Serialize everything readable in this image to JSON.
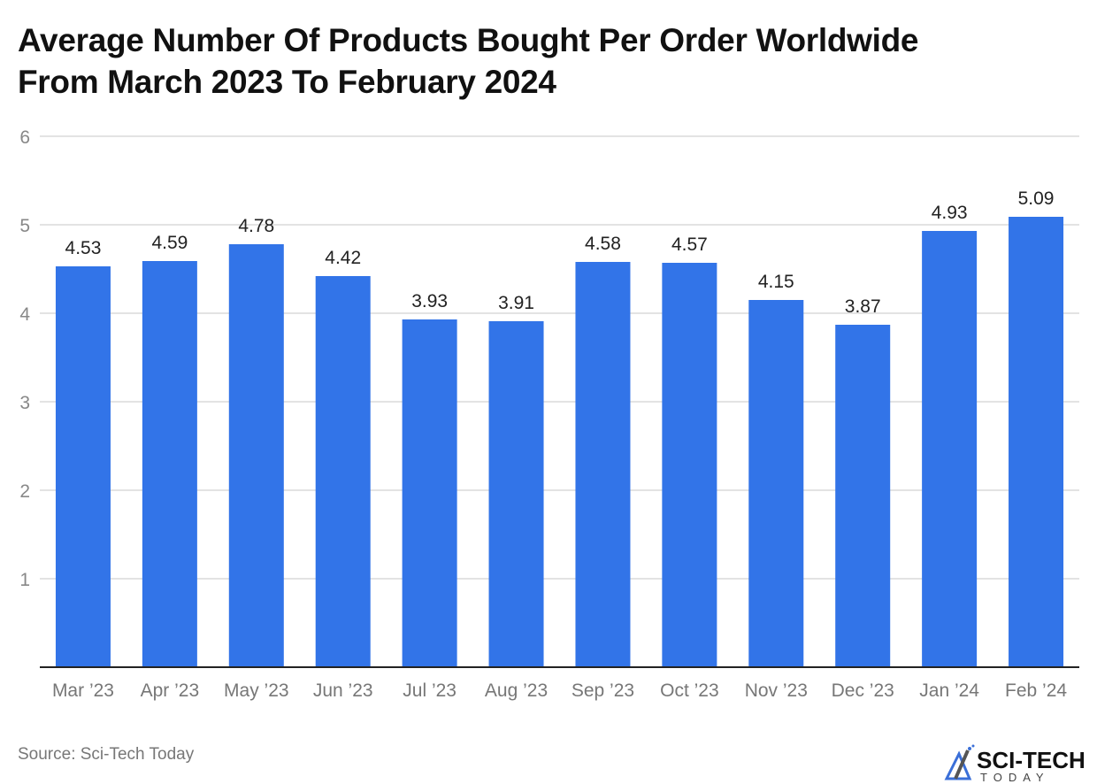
{
  "title_line1": "Average Number Of Products Bought Per Order Worldwide",
  "title_line2": "From March 2023 To February 2024",
  "source": "Source: Sci-Tech Today",
  "logo": {
    "text": "SCI-TECH",
    "subtext": "TODAY"
  },
  "colors": {
    "bar": "#3274e8",
    "grid": "#e3e3e3",
    "axis": "#222222"
  },
  "chart_data": {
    "type": "bar",
    "title": "Average Number Of Products Bought Per Order Worldwide From March 2023 To February 2024",
    "categories": [
      "Mar '23",
      "Apr '23",
      "May '23",
      "Jun '23",
      "Jul '23",
      "Aug '23",
      "Sep '23",
      "Oct '23",
      "Nov '23",
      "Dec '23",
      "Jan '24",
      "Feb '24"
    ],
    "values": [
      4.53,
      4.59,
      4.78,
      4.42,
      3.93,
      3.91,
      4.58,
      4.57,
      4.15,
      3.87,
      4.93,
      5.09
    ],
    "data_labels": [
      "4.53",
      "4.59",
      "4.78",
      "4.42",
      "3.93",
      "3.91",
      "4.58",
      "4.57",
      "4.15",
      "3.87",
      "4.93",
      "5.09"
    ],
    "yticks": [
      "1",
      "2",
      "3",
      "4",
      "5",
      "6"
    ],
    "ylim": [
      0,
      6
    ],
    "grid": true,
    "legend": "none"
  }
}
